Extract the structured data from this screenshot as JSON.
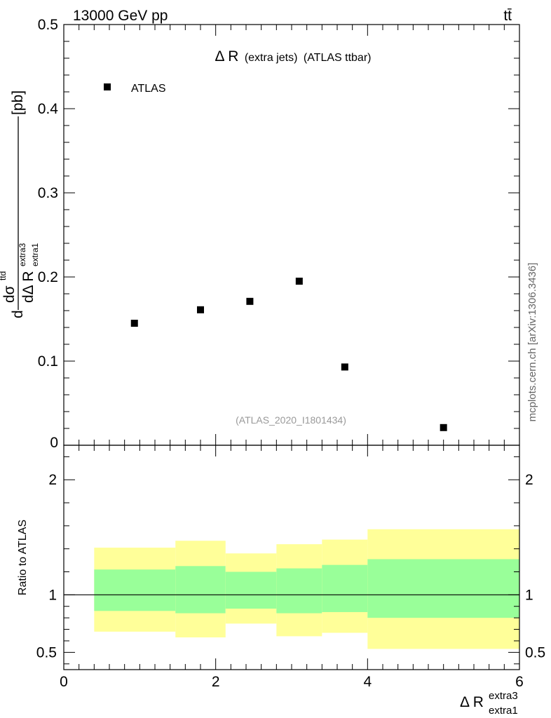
{
  "header": {
    "energy_label": "13000 GeV pp",
    "process_label": "tt̄"
  },
  "watermark": "mcplots.cern.ch [arXiv:1306.3436]",
  "chart_data": [
    {
      "type": "scatter",
      "panel": "main",
      "title_main": "Δ R",
      "title_small": "(extra jets)",
      "title_rest": "(ATLAS ttbar)",
      "analysis_id": "(ATLAS_2020_I1801434)",
      "ylabel": {
        "d": "d",
        "numerator": "dσ",
        "num_sup": "ttd",
        "denominator": "dΔ R",
        "den_sub": "extra1",
        "den_sup": "extra3",
        "unit": "[pb]"
      },
      "ylim": [
        0,
        0.5
      ],
      "y_ticks": [
        {
          "value": 0.1,
          "label": "0.1"
        },
        {
          "value": 0.2,
          "label": "0.2"
        },
        {
          "value": 0.3,
          "label": "0.3"
        },
        {
          "value": 0.4,
          "label": "0.4"
        },
        {
          "value": 0.5,
          "label": "0.5"
        }
      ],
      "y_zero_label": "0",
      "xlim": [
        0,
        6
      ],
      "grid": false,
      "legend_position": "top-left",
      "series": [
        {
          "name": "ATLAS",
          "marker": "square",
          "color": "#000000",
          "x": [
            0.93,
            1.8,
            2.45,
            3.1,
            3.7,
            5.0
          ],
          "y": [
            0.145,
            0.161,
            0.171,
            0.195,
            0.093,
            0.021
          ]
        }
      ]
    },
    {
      "type": "area",
      "panel": "ratio",
      "ylabel": "Ratio to ATLAS",
      "ylim": [
        0.35,
        2.3
      ],
      "y_ticks": [
        {
          "value": 0.5,
          "label": "0.5"
        },
        {
          "value": 1,
          "label": "1"
        },
        {
          "value": 2,
          "label": "2"
        }
      ],
      "xlim": [
        0,
        6
      ],
      "x_ticks": [
        {
          "value": 0,
          "label": "0"
        },
        {
          "value": 2,
          "label": "2"
        },
        {
          "value": 4,
          "label": "4"
        },
        {
          "value": 6,
          "label": "6"
        }
      ],
      "xlabel": {
        "main": "Δ R",
        "sup": "extra3",
        "sub": "extra1"
      },
      "reference_line": 1,
      "bands": [
        {
          "x_low": 0.4,
          "x_high": 1.47,
          "outer": [
            0.68,
            1.41
          ],
          "inner": [
            0.86,
            1.22
          ]
        },
        {
          "x_low": 1.47,
          "x_high": 2.13,
          "outer": [
            0.63,
            1.47
          ],
          "inner": [
            0.84,
            1.25
          ]
        },
        {
          "x_low": 2.13,
          "x_high": 2.8,
          "outer": [
            0.75,
            1.36
          ],
          "inner": [
            0.88,
            1.2
          ]
        },
        {
          "x_low": 2.8,
          "x_high": 3.4,
          "outer": [
            0.64,
            1.44
          ],
          "inner": [
            0.84,
            1.23
          ]
        },
        {
          "x_low": 3.4,
          "x_high": 4.0,
          "outer": [
            0.67,
            1.48
          ],
          "inner": [
            0.85,
            1.26
          ]
        },
        {
          "x_low": 4.0,
          "x_high": 6.0,
          "outer": [
            0.53,
            1.57
          ],
          "inner": [
            0.8,
            1.31
          ]
        }
      ],
      "colors": {
        "outer_band": "#ffff99",
        "inner_band": "#99ff99",
        "reference_line": "#000000"
      }
    }
  ]
}
